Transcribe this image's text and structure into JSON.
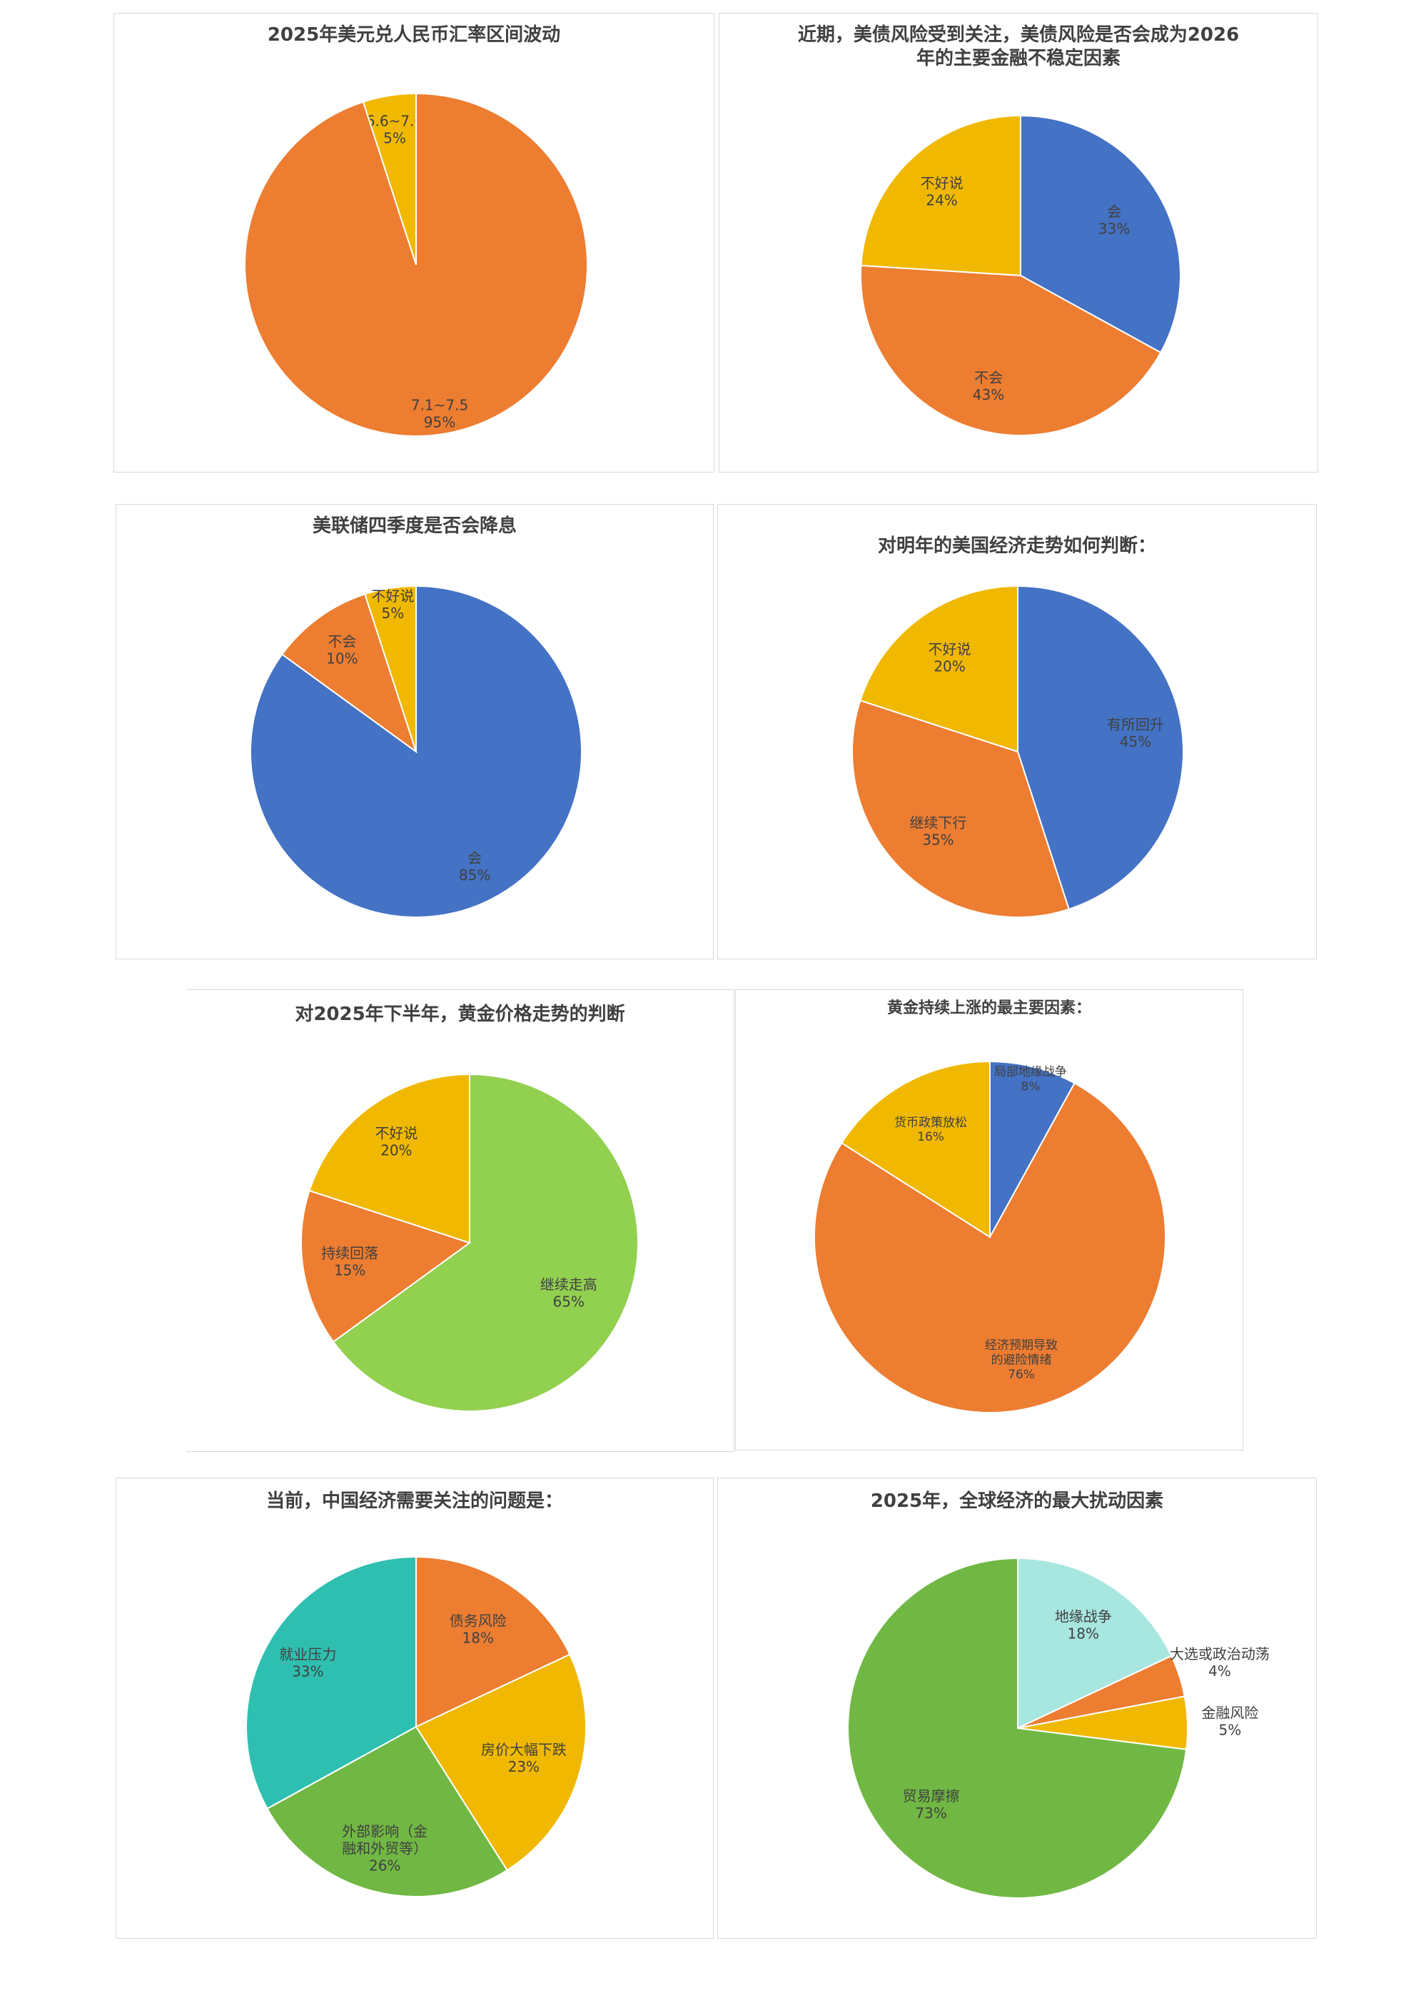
{
  "colors": {
    "blue": "#4472C4",
    "orange": "#ED7D31",
    "yellow": "#F0B800",
    "green": "#92D050",
    "teal": "#2EBFB0",
    "light_green": "#70B843",
    "light_teal": "#A8E6E0"
  },
  "chart_data": [
    {
      "type": "pie",
      "title": "2025年美元兑人民币汇率区间波动",
      "slices": [
        {
          "label": "6.6~7.0",
          "value": 5,
          "pct": "5%",
          "color": "#F0B800"
        },
        {
          "label": "7.1~7.5",
          "value": 95,
          "pct": "95%",
          "color": "#ED7D31"
        }
      ]
    },
    {
      "type": "pie",
      "title": "近期，美债风险受到关注，美债风险是否会成为2026年的主要金融不稳定因素",
      "slices": [
        {
          "label": "会",
          "value": 33,
          "pct": "33%",
          "color": "#4472C4"
        },
        {
          "label": "不会",
          "value": 43,
          "pct": "43%",
          "color": "#ED7D31"
        },
        {
          "label": "不好说",
          "value": 24,
          "pct": "24%",
          "color": "#F0B800"
        }
      ]
    },
    {
      "type": "pie",
      "title": "美联储四季度是否会降息",
      "slices": [
        {
          "label": "会",
          "value": 85,
          "pct": "85%",
          "color": "#4472C4"
        },
        {
          "label": "不会",
          "value": 10,
          "pct": "10%",
          "color": "#ED7D31"
        },
        {
          "label": "不好说",
          "value": 5,
          "pct": "5%",
          "color": "#F0B800"
        }
      ]
    },
    {
      "type": "pie",
      "title": "对明年的美国经济走势如何判断：",
      "slices": [
        {
          "label": "有所回升",
          "value": 45,
          "pct": "45%",
          "color": "#4472C4"
        },
        {
          "label": "继续下行",
          "value": 35,
          "pct": "35%",
          "color": "#ED7D31"
        },
        {
          "label": "不好说",
          "value": 20,
          "pct": "20%",
          "color": "#F0B800"
        }
      ]
    },
    {
      "type": "pie",
      "title": "对2025年下半年，黄金价格走势的判断",
      "slices": [
        {
          "label": "继续走高",
          "value": 65,
          "pct": "65%",
          "color": "#92D050"
        },
        {
          "label": "持续回落",
          "value": 15,
          "pct": "15%",
          "color": "#ED7D31"
        },
        {
          "label": "不好说",
          "value": 20,
          "pct": "20%",
          "color": "#F0B800"
        }
      ]
    },
    {
      "type": "pie",
      "title": "黄金持续上涨的最主要因素：",
      "slices": [
        {
          "label": "局部地缘战争",
          "value": 8,
          "pct": "8%",
          "color": "#4472C4"
        },
        {
          "label": "经济预期导致的避险情绪",
          "value": 76,
          "pct": "76%",
          "color": "#ED7D31"
        },
        {
          "label": "货币政策放松",
          "value": 16,
          "pct": "16%",
          "color": "#F0B800"
        }
      ]
    },
    {
      "type": "pie",
      "title": "当前，中国经济需要关注的问题是：",
      "slices": [
        {
          "label": "债务风险",
          "value": 18,
          "pct": "18%",
          "color": "#ED7D31"
        },
        {
          "label": "房价大幅下跌",
          "value": 23,
          "pct": "23%",
          "color": "#F0B800"
        },
        {
          "label": "外部影响（金融和外贸等）",
          "value": 26,
          "pct": "26%",
          "color": "#70B843"
        },
        {
          "label": "就业压力",
          "value": 33,
          "pct": "33%",
          "color": "#2EBFB0"
        }
      ]
    },
    {
      "type": "pie",
      "title": "2025年，全球经济的最大扰动因素",
      "slices": [
        {
          "label": "地缘战争",
          "value": 18,
          "pct": "18%",
          "color": "#A8E6E0"
        },
        {
          "label": "大选或政治动荡",
          "value": 4,
          "pct": "4%",
          "color": "#ED7D31"
        },
        {
          "label": "金融风险",
          "value": 5,
          "pct": "5%",
          "color": "#F0B800"
        },
        {
          "label": "贸易摩擦",
          "value": 73,
          "pct": "73%",
          "color": "#70B843"
        }
      ]
    }
  ]
}
